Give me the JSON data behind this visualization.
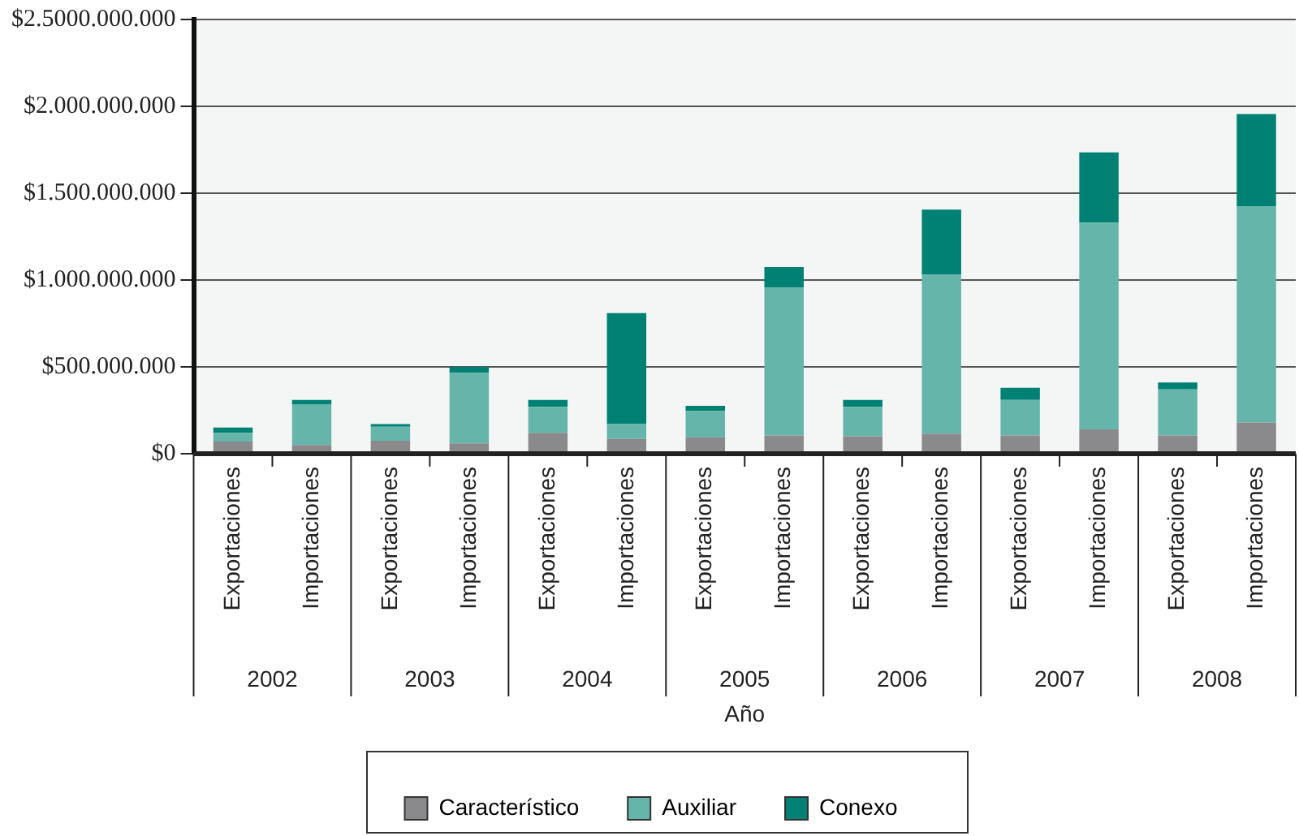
{
  "chart_data": {
    "type": "bar",
    "stacked": true,
    "categories": [
      "Exportaciones",
      "Importaciones",
      "Exportaciones",
      "Importaciones",
      "Exportaciones",
      "Importaciones",
      "Exportaciones",
      "Importaciones",
      "Exportaciones",
      "Importaciones",
      "Exportaciones",
      "Importaciones",
      "Exportaciones",
      "Importaciones"
    ],
    "series": [
      {
        "name": "Característico",
        "color": "#8a8a8c",
        "values": [
          70000000,
          50000000,
          75000000,
          60000000,
          120000000,
          85000000,
          95000000,
          105000000,
          100000000,
          115000000,
          105000000,
          140000000,
          105000000,
          180000000
        ]
      },
      {
        "name": "Auxiliar",
        "color": "#66b5aa",
        "values": [
          50000000,
          235000000,
          80000000,
          405000000,
          150000000,
          85000000,
          150000000,
          850000000,
          170000000,
          915000000,
          205000000,
          1190000000,
          265000000,
          1245000000
        ]
      },
      {
        "name": "Conexo",
        "color": "#008174",
        "values": [
          30000000,
          25000000,
          15000000,
          35000000,
          40000000,
          640000000,
          30000000,
          120000000,
          40000000,
          375000000,
          70000000,
          405000000,
          40000000,
          530000000
        ]
      }
    ],
    "ylim": [
      0,
      2500000000
    ],
    "yticks": [
      {
        "value": 0,
        "label": "$0"
      },
      {
        "value": 500000000,
        "label": "$500.000.000"
      },
      {
        "value": 1000000000,
        "label": "$1.000.000.000"
      },
      {
        "value": 1500000000,
        "label": "$1.500.000.000"
      },
      {
        "value": 2000000000,
        "label": "$2.000.000.000"
      },
      {
        "value": 2500000000,
        "label": "$2.5000.000.000"
      }
    ],
    "xlabel": "Año",
    "annotations": [
      "2002",
      "2003",
      "2004",
      "2005",
      "2006",
      "2007",
      "2008"
    ],
    "grid": "y",
    "legend": "bottom"
  }
}
